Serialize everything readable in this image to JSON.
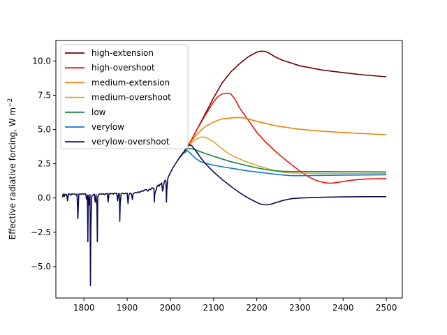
{
  "chart_data": {
    "type": "line",
    "title": "",
    "xlabel": "",
    "ylabel": "Effective radiative forcing, W m",
    "ylabel_sup": "−2",
    "xlim": [
      1735,
      2537
    ],
    "ylim": [
      -7.3,
      11.5
    ],
    "xticks": [
      1800,
      1900,
      2000,
      2100,
      2200,
      2300,
      2400,
      2500
    ],
    "yticks": [
      -5.0,
      -2.5,
      0.0,
      2.5,
      5.0,
      7.5,
      10.0
    ],
    "ytick_labels": [
      "−5.0",
      "−2.5",
      "0.0",
      "2.5",
      "5.0",
      "7.5",
      "10.0"
    ],
    "legend_position": "upper-left",
    "historical": {
      "x": [
        1750,
        1752,
        1754,
        1756,
        1758,
        1760,
        1762,
        1764,
        1766,
        1768,
        1770,
        1772,
        1774,
        1776,
        1778,
        1780,
        1782,
        1784,
        1786,
        1788,
        1790,
        1792,
        1794,
        1796,
        1798,
        1800,
        1802,
        1804,
        1806,
        1808,
        1809,
        1810,
        1812,
        1814,
        1815,
        1816,
        1818,
        1820,
        1822,
        1824,
        1826,
        1828,
        1830,
        1831,
        1832,
        1834,
        1836,
        1838,
        1840,
        1842,
        1844,
        1846,
        1848,
        1850,
        1852,
        1854,
        1856,
        1858,
        1860,
        1862,
        1864,
        1866,
        1868,
        1870,
        1872,
        1874,
        1876,
        1878,
        1880,
        1882,
        1883,
        1884,
        1886,
        1888,
        1890,
        1892,
        1894,
        1896,
        1898,
        1900,
        1902,
        1904,
        1906,
        1908,
        1910,
        1912,
        1914,
        1916,
        1918,
        1920,
        1922,
        1924,
        1926,
        1928,
        1930,
        1932,
        1934,
        1936,
        1938,
        1940,
        1942,
        1944,
        1946,
        1948,
        1950,
        1952,
        1954,
        1956,
        1958,
        1960,
        1962,
        1963,
        1964,
        1966,
        1968,
        1970,
        1972,
        1974,
        1976,
        1978,
        1980,
        1982,
        1984,
        1986,
        1988,
        1990,
        1991,
        1992,
        1994,
        1996,
        1998,
        2000,
        2002,
        2004,
        2006,
        2008,
        2010,
        2012,
        2014,
        2016,
        2018,
        2020
      ],
      "y": [
        0.05,
        0.3,
        0.1,
        0.28,
        0.2,
        0.25,
        -0.2,
        0.28,
        0.3,
        0.25,
        0.22,
        0.3,
        0.28,
        0.3,
        0.3,
        0.25,
        0.2,
        0.3,
        -1.5,
        0.25,
        0.3,
        0.3,
        0.25,
        0.3,
        0.3,
        0.28,
        0.3,
        0.3,
        -0.1,
        0.2,
        -3.2,
        0.2,
        -0.5,
        0.25,
        -6.4,
        -2.2,
        0.1,
        0.2,
        0.25,
        0.28,
        -0.3,
        0.25,
        -0.6,
        -3.2,
        0.1,
        0.25,
        0.28,
        0.3,
        0.28,
        0.3,
        0.28,
        0.3,
        0.25,
        0.3,
        0.32,
        0.33,
        -0.3,
        0.32,
        0.33,
        0.3,
        0.32,
        0.33,
        0.28,
        0.33,
        0.35,
        0.32,
        0.34,
        -0.2,
        0.3,
        0.33,
        -1.7,
        -0.4,
        0.3,
        0.33,
        0.35,
        0.32,
        0.3,
        0.35,
        0.33,
        0.36,
        -0.4,
        0.2,
        0.35,
        0.33,
        0.3,
        -0.1,
        0.32,
        0.36,
        0.38,
        0.4,
        0.38,
        0.42,
        0.45,
        0.4,
        0.45,
        0.48,
        0.5,
        0.55,
        0.5,
        0.58,
        0.6,
        0.62,
        0.55,
        0.5,
        0.6,
        0.65,
        0.6,
        0.7,
        0.75,
        0.7,
        0.72,
        -0.3,
        0.3,
        0.5,
        0.7,
        0.9,
        0.95,
        0.85,
        1.0,
        1.0,
        1.1,
        0.5,
        0.8,
        1.2,
        1.3,
        1.2,
        -0.3,
        0.6,
        1.4,
        1.6,
        1.7,
        1.85,
        1.95,
        2.1,
        2.2,
        2.3,
        2.4,
        2.5,
        2.6,
        2.7,
        2.8,
        2.9
      ]
    },
    "series": [
      {
        "name": "high-extension",
        "color": "#6b0000",
        "x": [
          2020,
          2030,
          2040,
          2050,
          2060,
          2080,
          2100,
          2120,
          2140,
          2160,
          2180,
          2200,
          2210,
          2220,
          2230,
          2240,
          2260,
          2280,
          2300,
          2350,
          2400,
          2450,
          2500
        ],
        "y": [
          2.9,
          3.3,
          3.8,
          4.3,
          4.9,
          6.1,
          7.3,
          8.4,
          9.2,
          9.8,
          10.3,
          10.65,
          10.72,
          10.7,
          10.55,
          10.35,
          10.05,
          9.85,
          9.65,
          9.35,
          9.15,
          8.98,
          8.85
        ]
      },
      {
        "name": "high-overshoot",
        "color": "#e8150c",
        "x": [
          2020,
          2030,
          2040,
          2050,
          2060,
          2080,
          2100,
          2110,
          2120,
          2130,
          2140,
          2150,
          2160,
          2180,
          2200,
          2220,
          2240,
          2260,
          2280,
          2300,
          2320,
          2340,
          2360,
          2370,
          2380,
          2390,
          2400,
          2420,
          2450,
          2500
        ],
        "y": [
          2.9,
          3.3,
          3.8,
          4.3,
          4.9,
          6.0,
          7.0,
          7.4,
          7.6,
          7.65,
          7.6,
          7.2,
          6.6,
          5.7,
          4.8,
          4.1,
          3.5,
          2.95,
          2.45,
          1.95,
          1.55,
          1.25,
          1.1,
          1.08,
          1.1,
          1.15,
          1.2,
          1.3,
          1.38,
          1.42
        ]
      },
      {
        "name": "medium-extension",
        "color": "#f0800a",
        "x": [
          2020,
          2030,
          2040,
          2050,
          2060,
          2080,
          2100,
          2120,
          2140,
          2160,
          2170,
          2180,
          2200,
          2220,
          2240,
          2260,
          2280,
          2300,
          2350,
          2400,
          2450,
          2500
        ],
        "y": [
          2.9,
          3.3,
          3.75,
          4.2,
          4.6,
          5.2,
          5.55,
          5.78,
          5.85,
          5.88,
          5.85,
          5.78,
          5.6,
          5.45,
          5.3,
          5.2,
          5.1,
          5.02,
          4.88,
          4.78,
          4.7,
          4.62
        ]
      },
      {
        "name": "medium-overshoot",
        "color": "#d9a33a",
        "x": [
          2020,
          2030,
          2040,
          2050,
          2060,
          2070,
          2080,
          2090,
          2100,
          2110,
          2120,
          2130,
          2140,
          2160,
          2180,
          2200,
          2220,
          2240,
          2260,
          2280,
          2300,
          2350,
          2400,
          2450,
          2500
        ],
        "y": [
          2.9,
          3.3,
          3.7,
          4.05,
          4.3,
          4.45,
          4.45,
          4.3,
          4.1,
          3.85,
          3.6,
          3.35,
          3.15,
          2.85,
          2.6,
          2.38,
          2.18,
          2.0,
          1.88,
          1.83,
          1.82,
          1.8,
          1.8,
          1.8,
          1.8
        ]
      },
      {
        "name": "low",
        "color": "#13853e",
        "x": [
          2020,
          2030,
          2040,
          2050,
          2060,
          2080,
          2100,
          2120,
          2140,
          2160,
          2180,
          2200,
          2220,
          2240,
          2260,
          2280,
          2300,
          2350,
          2400,
          2450,
          2500
        ],
        "y": [
          2.9,
          3.3,
          3.6,
          3.6,
          3.5,
          3.25,
          3.05,
          2.85,
          2.65,
          2.5,
          2.35,
          2.2,
          2.08,
          2.0,
          1.95,
          1.93,
          1.93,
          1.93,
          1.92,
          1.92,
          1.9
        ]
      },
      {
        "name": "verylow",
        "color": "#0f77cf",
        "x": [
          2020,
          2030,
          2040,
          2050,
          2060,
          2070,
          2080,
          2100,
          2120,
          2140,
          2160,
          2180,
          2200,
          2220,
          2240,
          2260,
          2280,
          2300,
          2350,
          2400,
          2450,
          2500
        ],
        "y": [
          2.9,
          3.25,
          3.45,
          3.15,
          2.85,
          2.65,
          2.55,
          2.4,
          2.28,
          2.18,
          2.08,
          1.98,
          1.9,
          1.83,
          1.75,
          1.68,
          1.63,
          1.63,
          1.65,
          1.67,
          1.68,
          1.7
        ]
      },
      {
        "name": "verylow-overshoot",
        "color": "#0d0b4d",
        "x": [
          2020,
          2030,
          2040,
          2045,
          2050,
          2060,
          2070,
          2080,
          2100,
          2120,
          2140,
          2160,
          2180,
          2200,
          2210,
          2220,
          2230,
          2240,
          2260,
          2280,
          2300,
          2350,
          2400,
          2450,
          2500
        ],
        "y": [
          2.9,
          3.3,
          3.75,
          3.9,
          3.8,
          3.4,
          2.95,
          2.55,
          1.9,
          1.35,
          0.85,
          0.4,
          0.0,
          -0.32,
          -0.45,
          -0.5,
          -0.48,
          -0.38,
          -0.18,
          -0.05,
          0.0,
          0.05,
          0.08,
          0.1,
          0.1
        ]
      }
    ]
  }
}
